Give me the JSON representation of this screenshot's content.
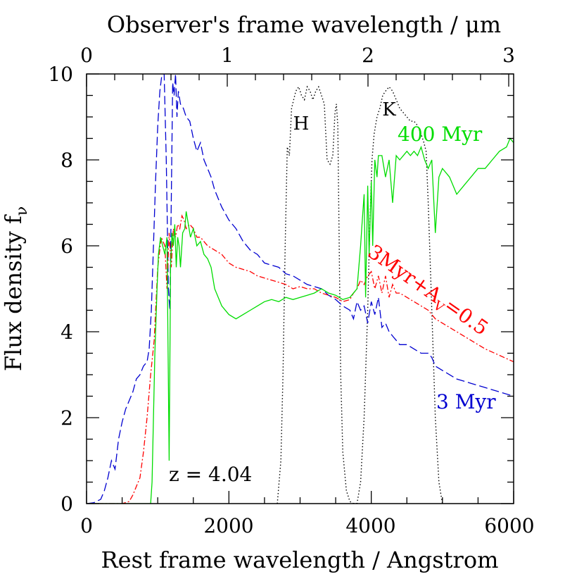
{
  "chart_data": {
    "type": "line",
    "title": "",
    "xlabel": "Rest frame wavelength / Angstrom",
    "ylabel": "Flux density f",
    "ylabel_sub": "ν",
    "x2label": "Observer's frame wavelength / μm",
    "xlim": [
      0,
      6000
    ],
    "ylim": [
      0,
      10
    ],
    "x_ticks": [
      "0",
      "2000",
      "4000",
      "6000"
    ],
    "y_ticks": [
      "0",
      "2",
      "4",
      "6",
      "8",
      "10"
    ],
    "x2_ticks": [
      "0",
      "1",
      "2",
      "3"
    ],
    "redshift": 4.04,
    "annotations": {
      "redshift_label": "z = 4.04",
      "filter_H": "H",
      "filter_K": "K",
      "label_400myr": "400 Myr",
      "label_3myr": "3 Myr",
      "label_3myr_av_main": "3Myr+A",
      "label_3myr_av_sub": "V",
      "label_3myr_av_tail": "=0.5"
    },
    "colors": {
      "series_3myr": "#0000d0",
      "series_3myr_av": "#ff0000",
      "series_400myr": "#00dd00",
      "filters": "#000000",
      "axes": "#000000"
    },
    "series": [
      {
        "name": "3 Myr",
        "color": "#0000d0",
        "dash": "12 5",
        "x": [
          0,
          100,
          200,
          250,
          300,
          350,
          400,
          450,
          500,
          550,
          600,
          650,
          700,
          750,
          800,
          850,
          880,
          910,
          940,
          970,
          1000,
          1030,
          1060,
          1090,
          1120,
          1150,
          1170,
          1190,
          1210,
          1230,
          1250,
          1270,
          1290,
          1320,
          1360,
          1400,
          1450,
          1500,
          1550,
          1600,
          1650,
          1700,
          1750,
          1800,
          1900,
          2000,
          2100,
          2200,
          2300,
          2400,
          2500,
          2600,
          2700,
          2800,
          2900,
          3000,
          3100,
          3200,
          3300,
          3400,
          3500,
          3600,
          3700,
          3750,
          3800,
          3850,
          3900,
          3950,
          4000,
          4050,
          4100,
          4150,
          4200,
          4250,
          4300,
          4350,
          4400,
          4500,
          4600,
          4700,
          4800,
          4850,
          4900,
          5000,
          5200,
          5400,
          5600,
          5800,
          6000
        ],
        "y": [
          0,
          0.02,
          0.1,
          0.3,
          0.6,
          1.0,
          0.8,
          1.5,
          1.9,
          2.2,
          2.4,
          2.6,
          2.9,
          3.0,
          3.2,
          3.3,
          3.6,
          4.5,
          6.0,
          7.5,
          8.8,
          9.6,
          10.0,
          10.0,
          8.0,
          5.0,
          4.5,
          7.0,
          9.8,
          9.5,
          10.0,
          9.0,
          9.6,
          9.3,
          9.2,
          9.0,
          8.9,
          8.5,
          8.2,
          8.4,
          8.0,
          7.8,
          7.6,
          7.3,
          6.9,
          6.6,
          6.4,
          6.1,
          5.9,
          5.8,
          5.6,
          5.55,
          5.5,
          5.35,
          5.3,
          5.2,
          5.1,
          5.05,
          5.0,
          4.85,
          4.75,
          4.6,
          4.5,
          4.3,
          4.7,
          4.5,
          4.6,
          4.2,
          4.7,
          4.4,
          4.8,
          4.1,
          4.2,
          4.0,
          3.9,
          3.8,
          3.7,
          3.7,
          3.6,
          3.5,
          3.5,
          3.4,
          3.2,
          3.1,
          2.9,
          2.8,
          2.7,
          2.6,
          2.5
        ]
      },
      {
        "name": "3Myr+A_V=0.5",
        "color": "#ff0000",
        "dash": "8 3 2 3",
        "x": [
          0,
          300,
          500,
          600,
          650,
          700,
          750,
          800,
          850,
          900,
          950,
          1000,
          1050,
          1100,
          1130,
          1160,
          1190,
          1220,
          1250,
          1280,
          1310,
          1340,
          1370,
          1400,
          1450,
          1500,
          1550,
          1600,
          1700,
          1800,
          1900,
          2000,
          2100,
          2200,
          2300,
          2400,
          2500,
          2600,
          2700,
          2800,
          2900,
          3000,
          3100,
          3200,
          3300,
          3400,
          3500,
          3600,
          3700,
          3750,
          3800,
          3850,
          3900,
          3950,
          4000,
          4050,
          4100,
          4150,
          4200,
          4250,
          4300,
          4350,
          4400,
          4500,
          4600,
          4700,
          4800,
          4850,
          4900,
          5000,
          5200,
          5400,
          5600,
          5800,
          6000
        ],
        "y": [
          0,
          0,
          0,
          0.05,
          0.2,
          0.4,
          0.6,
          1.2,
          2.0,
          3.0,
          3.8,
          5.5,
          6.2,
          6.0,
          5.0,
          6.3,
          5.5,
          6.4,
          6.2,
          6.5,
          6.4,
          6.7,
          6.6,
          6.4,
          6.5,
          6.4,
          6.2,
          6.2,
          6.0,
          5.9,
          5.8,
          5.6,
          5.5,
          5.45,
          5.4,
          5.3,
          5.25,
          5.2,
          5.15,
          5.1,
          5.0,
          5.05,
          5.0,
          5.0,
          4.9,
          4.85,
          4.8,
          4.7,
          4.75,
          4.9,
          5.0,
          5.2,
          5.1,
          5.3,
          5.4,
          5.0,
          5.3,
          4.9,
          5.3,
          4.8,
          5.1,
          4.9,
          4.9,
          4.8,
          4.7,
          4.6,
          4.5,
          4.4,
          4.3,
          4.2,
          4.0,
          3.8,
          3.6,
          3.45,
          3.3
        ]
      },
      {
        "name": "400 Myr",
        "color": "#00dd00",
        "dash": "",
        "x": [
          0,
          850,
          900,
          920,
          940,
          960,
          990,
          1010,
          1040,
          1070,
          1100,
          1130,
          1160,
          1180,
          1200,
          1220,
          1240,
          1260,
          1280,
          1300,
          1320,
          1350,
          1380,
          1400,
          1430,
          1460,
          1500,
          1550,
          1600,
          1650,
          1700,
          1750,
          1800,
          1900,
          2000,
          2100,
          2200,
          2300,
          2400,
          2500,
          2600,
          2700,
          2800,
          2900,
          3000,
          3100,
          3200,
          3300,
          3400,
          3500,
          3600,
          3700,
          3750,
          3800,
          3850,
          3870,
          3900,
          3920,
          3950,
          3970,
          4000,
          4020,
          4050,
          4080,
          4100,
          4150,
          4200,
          4250,
          4300,
          4350,
          4400,
          4450,
          4500,
          4550,
          4600,
          4650,
          4700,
          4750,
          4800,
          4850,
          4900,
          4950,
          5000,
          5100,
          5200,
          5300,
          5400,
          5500,
          5600,
          5700,
          5800,
          5900,
          5950,
          6000
        ],
        "y": [
          0,
          0,
          0,
          0.5,
          2.0,
          3.5,
          5.0,
          5.8,
          6.2,
          6.0,
          5.8,
          6.2,
          1.0,
          5.5,
          6.3,
          6.0,
          6.5,
          5.5,
          6.2,
          6.0,
          5.5,
          6.3,
          6.4,
          6.8,
          6.5,
          6.2,
          6.4,
          6.0,
          6.1,
          5.8,
          5.7,
          5.5,
          5.0,
          4.6,
          4.4,
          4.3,
          4.4,
          4.5,
          4.6,
          4.7,
          4.75,
          4.7,
          4.8,
          4.75,
          4.8,
          4.85,
          4.9,
          5.0,
          4.9,
          4.85,
          4.75,
          4.8,
          4.9,
          5.0,
          6.0,
          6.5,
          7.2,
          4.8,
          7.4,
          5.8,
          7.5,
          6.0,
          8.0,
          7.6,
          8.1,
          8.1,
          7.6,
          8.0,
          7.0,
          8.1,
          8.0,
          8.1,
          8.2,
          8.1,
          8.2,
          8.1,
          8.3,
          8.0,
          7.8,
          8.0,
          6.3,
          7.6,
          7.8,
          7.6,
          7.2,
          7.4,
          7.6,
          7.8,
          7.8,
          8.0,
          8.2,
          8.3,
          8.5,
          8.4
        ]
      }
    ],
    "filter_curves": [
      {
        "name": "H",
        "x": [
          2680,
          2730,
          2760,
          2790,
          2820,
          2850,
          2880,
          2910,
          2940,
          2980,
          3020,
          3060,
          3100,
          3140,
          3180,
          3220,
          3260,
          3300,
          3340,
          3380,
          3420,
          3460,
          3490,
          3510,
          3530,
          3550,
          3570,
          3600,
          3650,
          3700,
          3750,
          3800
        ],
        "y": [
          0,
          1.0,
          3.0,
          6.0,
          8.3,
          8.1,
          9.2,
          9.4,
          9.6,
          9.7,
          9.5,
          9.4,
          9.7,
          9.6,
          9.4,
          9.6,
          9.7,
          9.5,
          9.3,
          8.0,
          7.9,
          8.1,
          9.1,
          9.3,
          8.8,
          6.0,
          3.0,
          1.2,
          0.3,
          0.05,
          0,
          0
        ]
      },
      {
        "name": "K",
        "x": [
          3750,
          3800,
          3850,
          3900,
          3950,
          3980,
          4010,
          4040,
          4080,
          4120,
          4160,
          4200,
          4250,
          4300,
          4350,
          4400,
          4450,
          4500,
          4550,
          4600,
          4650,
          4700,
          4740,
          4770,
          4800,
          4850,
          4900,
          4950,
          5000
        ],
        "y": [
          0,
          0,
          0.5,
          2.0,
          4.5,
          6.5,
          8.0,
          8.6,
          9.0,
          9.2,
          9.5,
          9.6,
          9.7,
          9.6,
          9.4,
          9.2,
          9.1,
          9.0,
          8.9,
          8.9,
          8.8,
          8.6,
          8.4,
          8.2,
          7.0,
          4.5,
          2.0,
          0.5,
          0
        ]
      }
    ]
  }
}
